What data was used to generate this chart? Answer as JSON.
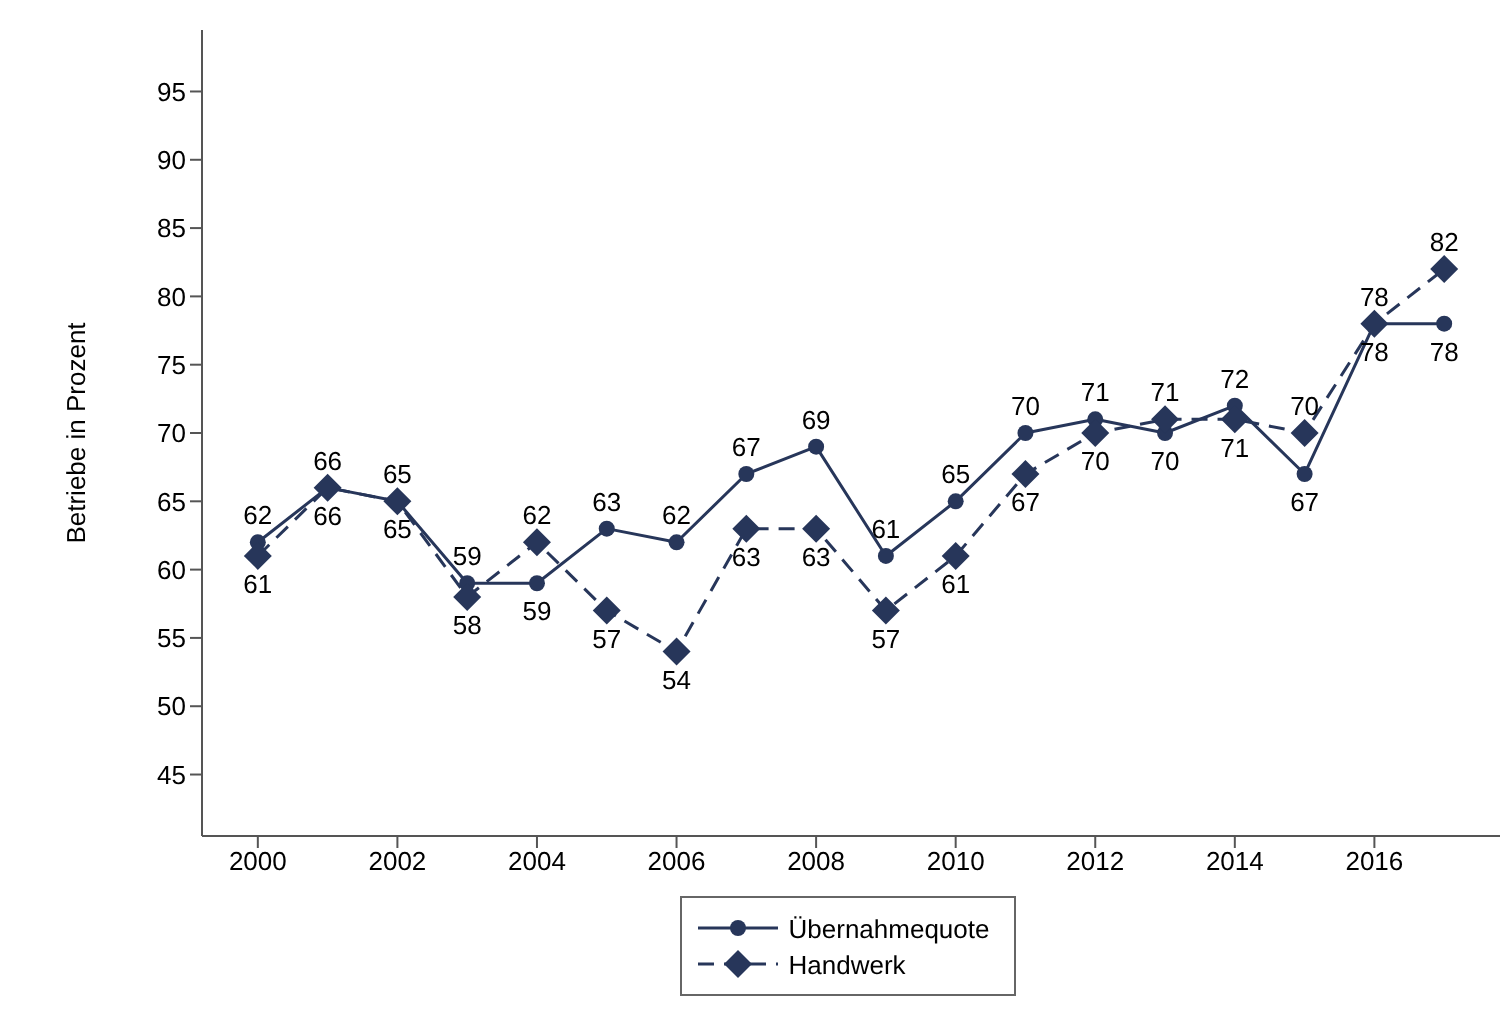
{
  "chart_data": {
    "type": "line",
    "ylabel": "Betriebe in Prozent",
    "x": [
      2000,
      2001,
      2002,
      2003,
      2004,
      2005,
      2006,
      2007,
      2008,
      2009,
      2010,
      2011,
      2012,
      2013,
      2014,
      2015,
      2016,
      2017
    ],
    "series": [
      {
        "name": "Übernahmequote",
        "color": "#27365a",
        "marker": "circle",
        "line_style": "solid",
        "values": [
          62,
          66,
          65,
          59,
          59,
          63,
          62,
          67,
          69,
          61,
          65,
          70,
          71,
          70,
          72,
          67,
          78,
          78
        ]
      },
      {
        "name": "Handwerk",
        "color": "#27365a",
        "marker": "diamond",
        "line_style": "dashed",
        "values": [
          61,
          66,
          65,
          58,
          62,
          57,
          54,
          63,
          63,
          57,
          61,
          67,
          70,
          71,
          71,
          70,
          78,
          82
        ]
      }
    ],
    "xlim": [
      1999.2,
      2017.8
    ],
    "xticks": [
      2000,
      2002,
      2004,
      2006,
      2008,
      2010,
      2012,
      2014,
      2016
    ],
    "ylim": [
      40.5,
      99.5
    ],
    "yticks": [
      45,
      50,
      55,
      60,
      65,
      70,
      75,
      80,
      85,
      90,
      95
    ],
    "grid": false,
    "legend": "bottom",
    "data_labels": true
  }
}
